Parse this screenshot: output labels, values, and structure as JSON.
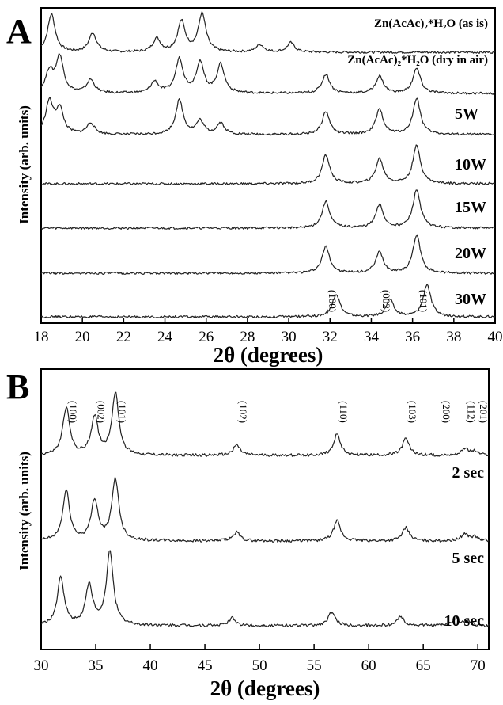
{
  "chart_data": [
    {
      "panel": "A",
      "type": "line",
      "xlabel": "2θ (degrees)",
      "ylabel": "Intensity (arb. units)",
      "xlim": [
        18,
        40
      ],
      "xticks": [
        18,
        20,
        22,
        24,
        26,
        28,
        30,
        32,
        34,
        36,
        38,
        40
      ],
      "series": [
        {
          "name": "Zn(AcAc)₂*H₂O (as is)",
          "peaks": [
            [
              18.5,
              1.0
            ],
            [
              20.5,
              0.5
            ],
            [
              23.6,
              0.35
            ],
            [
              24.8,
              0.8
            ],
            [
              25.8,
              1.0
            ],
            [
              28.6,
              0.2
            ],
            [
              30.1,
              0.25
            ]
          ]
        },
        {
          "name": "Zn(AcAc)₂*H₂O (dry in air)",
          "peaks": [
            [
              18.4,
              0.55
            ],
            [
              18.9,
              0.95
            ],
            [
              20.4,
              0.35
            ],
            [
              23.5,
              0.3
            ],
            [
              24.7,
              0.9
            ],
            [
              25.7,
              0.8
            ],
            [
              26.7,
              0.75
            ],
            [
              31.8,
              0.5
            ],
            [
              34.4,
              0.45
            ],
            [
              36.2,
              0.65
            ]
          ]
        },
        {
          "name": "5W",
          "peaks": [
            [
              18.4,
              0.85
            ],
            [
              18.9,
              0.65
            ],
            [
              20.4,
              0.3
            ],
            [
              24.7,
              0.9
            ],
            [
              25.7,
              0.35
            ],
            [
              26.7,
              0.3
            ],
            [
              31.8,
              0.6
            ],
            [
              34.4,
              0.65
            ],
            [
              36.2,
              0.95
            ]
          ]
        },
        {
          "name": "10W",
          "peaks": [
            [
              31.8,
              0.75
            ],
            [
              34.4,
              0.65
            ],
            [
              36.2,
              1.0
            ]
          ]
        },
        {
          "name": "15W",
          "peaks": [
            [
              31.8,
              0.7
            ],
            [
              34.4,
              0.6
            ],
            [
              36.2,
              1.0
            ]
          ]
        },
        {
          "name": "20W",
          "peaks": [
            [
              31.8,
              0.7
            ],
            [
              34.4,
              0.55
            ],
            [
              36.2,
              1.0
            ]
          ]
        },
        {
          "name": "30W",
          "peaks": [
            [
              32.3,
              0.6
            ],
            [
              34.9,
              0.45
            ],
            [
              36.7,
              0.85
            ]
          ]
        }
      ],
      "peak_labels": [
        {
          "text": "(100)",
          "x": 31.8
        },
        {
          "text": "(002)",
          "x": 34.4
        },
        {
          "text": "(101)",
          "x": 36.2
        }
      ]
    },
    {
      "panel": "B",
      "type": "line",
      "xlabel": "2θ (degrees)",
      "ylabel": "Intensity (arb. units)",
      "xlim": [
        30,
        71
      ],
      "xticks": [
        30,
        35,
        40,
        45,
        50,
        55,
        60,
        65,
        70
      ],
      "series": [
        {
          "name": "2 sec",
          "peaks": [
            [
              32.3,
              1.0
            ],
            [
              34.9,
              0.8
            ],
            [
              36.8,
              1.3
            ],
            [
              47.9,
              0.22
            ],
            [
              57.1,
              0.45
            ],
            [
              63.4,
              0.35
            ],
            [
              68.8,
              0.15
            ],
            [
              69.7,
              0.08
            ]
          ]
        },
        {
          "name": "5 sec",
          "peaks": [
            [
              32.3,
              1.05
            ],
            [
              34.9,
              0.85
            ],
            [
              36.8,
              1.3
            ],
            [
              47.9,
              0.18
            ],
            [
              57.1,
              0.42
            ],
            [
              63.4,
              0.28
            ],
            [
              68.8,
              0.15
            ],
            [
              69.7,
              0.08
            ]
          ]
        },
        {
          "name": "10 sec",
          "peaks": [
            [
              31.8,
              1.0
            ],
            [
              34.4,
              0.85
            ],
            [
              36.3,
              1.55
            ],
            [
              47.5,
              0.16
            ],
            [
              56.6,
              0.28
            ],
            [
              62.9,
              0.2
            ],
            [
              68.0,
              0.15
            ],
            [
              69.1,
              0.09
            ]
          ]
        }
      ],
      "peak_labels": [
        {
          "text": "(100)",
          "x": 32.3
        },
        {
          "text": "(002)",
          "x": 34.9
        },
        {
          "text": "(101)",
          "x": 36.8
        },
        {
          "text": "(102)",
          "x": 47.9
        },
        {
          "text": "(110)",
          "x": 57.1
        },
        {
          "text": "(103)",
          "x": 63.4
        },
        {
          "text": "(200)",
          "x": 66.5
        },
        {
          "text": "(112)",
          "x": 68.8
        },
        {
          "text": "(201)",
          "x": 69.9
        }
      ]
    }
  ]
}
